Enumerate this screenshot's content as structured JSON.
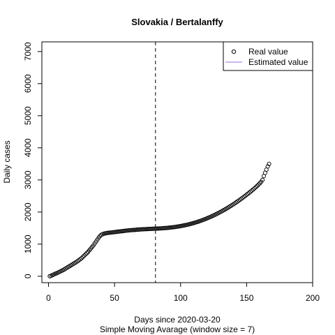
{
  "chart_data": {
    "type": "scatter",
    "title": "Slovakia / Bertalanffy",
    "xlabel": "Days since 2020-03-20",
    "subtitle": "Simple Moving Avarage (window size = 7)",
    "ylabel": "Daily cases",
    "xlim": [
      -5,
      200
    ],
    "ylim": [
      -200,
      7300
    ],
    "x_ticks": [
      0,
      50,
      100,
      150,
      200
    ],
    "y_ticks": [
      0,
      1000,
      2000,
      3000,
      4000,
      5000,
      6000,
      7000
    ],
    "vline_x": 81,
    "grid": false,
    "legend": {
      "position": "top-right",
      "entries": [
        {
          "label": "Real value",
          "marker": "circle"
        },
        {
          "label": "Estimated value",
          "marker": "line",
          "color": "#9370DB"
        }
      ]
    },
    "series": [
      {
        "name": "Real value",
        "points": [
          [
            1,
            0
          ],
          [
            2,
            15
          ],
          [
            3,
            35
          ],
          [
            4,
            55
          ],
          [
            5,
            75
          ],
          [
            6,
            90
          ],
          [
            7,
            110
          ],
          [
            8,
            130
          ],
          [
            9,
            150
          ],
          [
            10,
            170
          ],
          [
            11,
            190
          ],
          [
            12,
            215
          ],
          [
            13,
            240
          ],
          [
            14,
            265
          ],
          [
            15,
            290
          ],
          [
            16,
            315
          ],
          [
            17,
            340
          ],
          [
            18,
            365
          ],
          [
            19,
            390
          ],
          [
            20,
            415
          ],
          [
            21,
            440
          ],
          [
            22,
            470
          ],
          [
            23,
            500
          ],
          [
            24,
            530
          ],
          [
            25,
            560
          ],
          [
            26,
            600
          ],
          [
            27,
            640
          ],
          [
            28,
            680
          ],
          [
            29,
            720
          ],
          [
            30,
            760
          ],
          [
            31,
            810
          ],
          [
            32,
            860
          ],
          [
            33,
            910
          ],
          [
            34,
            960
          ],
          [
            35,
            1020
          ],
          [
            36,
            1080
          ],
          [
            37,
            1140
          ],
          [
            38,
            1200
          ],
          [
            39,
            1250
          ],
          [
            40,
            1290
          ],
          [
            41,
            1310
          ],
          [
            42,
            1325
          ],
          [
            43,
            1335
          ],
          [
            44,
            1345
          ],
          [
            45,
            1350
          ],
          [
            46,
            1355
          ],
          [
            47,
            1360
          ],
          [
            48,
            1365
          ],
          [
            49,
            1370
          ],
          [
            50,
            1375
          ],
          [
            51,
            1380
          ],
          [
            52,
            1385
          ],
          [
            53,
            1390
          ],
          [
            54,
            1395
          ],
          [
            55,
            1400
          ],
          [
            56,
            1405
          ],
          [
            57,
            1410
          ],
          [
            58,
            1415
          ],
          [
            59,
            1420
          ],
          [
            60,
            1425
          ],
          [
            61,
            1430
          ],
          [
            62,
            1433
          ],
          [
            63,
            1436
          ],
          [
            64,
            1440
          ],
          [
            65,
            1443
          ],
          [
            66,
            1446
          ],
          [
            67,
            1450
          ],
          [
            68,
            1453
          ],
          [
            69,
            1456
          ],
          [
            70,
            1460
          ],
          [
            71,
            1462
          ],
          [
            72,
            1464
          ],
          [
            73,
            1466
          ],
          [
            74,
            1468
          ],
          [
            75,
            1470
          ],
          [
            76,
            1472
          ],
          [
            77,
            1474
          ],
          [
            78,
            1476
          ],
          [
            79,
            1478
          ],
          [
            80,
            1480
          ],
          [
            81,
            1482
          ],
          [
            82,
            1484
          ],
          [
            83,
            1486
          ],
          [
            84,
            1488
          ],
          [
            85,
            1490
          ],
          [
            86,
            1493
          ],
          [
            87,
            1496
          ],
          [
            88,
            1500
          ],
          [
            89,
            1503
          ],
          [
            90,
            1506
          ],
          [
            91,
            1510
          ],
          [
            92,
            1515
          ],
          [
            93,
            1520
          ],
          [
            94,
            1525
          ],
          [
            95,
            1530
          ],
          [
            96,
            1536
          ],
          [
            97,
            1542
          ],
          [
            98,
            1548
          ],
          [
            99,
            1555
          ],
          [
            100,
            1562
          ],
          [
            101,
            1570
          ],
          [
            102,
            1578
          ],
          [
            103,
            1586
          ],
          [
            104,
            1595
          ],
          [
            105,
            1604
          ],
          [
            106,
            1614
          ],
          [
            107,
            1624
          ],
          [
            108,
            1635
          ],
          [
            109,
            1646
          ],
          [
            110,
            1658
          ],
          [
            111,
            1670
          ],
          [
            112,
            1683
          ],
          [
            113,
            1696
          ],
          [
            114,
            1710
          ],
          [
            115,
            1724
          ],
          [
            116,
            1739
          ],
          [
            117,
            1754
          ],
          [
            118,
            1770
          ],
          [
            119,
            1786
          ],
          [
            120,
            1803
          ],
          [
            121,
            1820
          ],
          [
            122,
            1838
          ],
          [
            123,
            1856
          ],
          [
            124,
            1875
          ],
          [
            125,
            1894
          ],
          [
            126,
            1914
          ],
          [
            127,
            1934
          ],
          [
            128,
            1955
          ],
          [
            129,
            1976
          ],
          [
            130,
            1998
          ],
          [
            131,
            2020
          ],
          [
            132,
            2043
          ],
          [
            133,
            2066
          ],
          [
            134,
            2090
          ],
          [
            135,
            2114
          ],
          [
            136,
            2139
          ],
          [
            137,
            2164
          ],
          [
            138,
            2190
          ],
          [
            139,
            2216
          ],
          [
            140,
            2243
          ],
          [
            141,
            2270
          ],
          [
            142,
            2298
          ],
          [
            143,
            2326
          ],
          [
            144,
            2355
          ],
          [
            145,
            2384
          ],
          [
            146,
            2414
          ],
          [
            147,
            2444
          ],
          [
            148,
            2475
          ],
          [
            149,
            2506
          ],
          [
            150,
            2538
          ],
          [
            151,
            2570
          ],
          [
            152,
            2603
          ],
          [
            153,
            2636
          ],
          [
            154,
            2670
          ],
          [
            155,
            2704
          ],
          [
            156,
            2740
          ],
          [
            157,
            2776
          ],
          [
            158,
            2814
          ],
          [
            159,
            2854
          ],
          [
            160,
            2896
          ],
          [
            161,
            2940
          ],
          [
            162,
            3000
          ],
          [
            163,
            3120
          ],
          [
            164,
            3220
          ],
          [
            165,
            3320
          ],
          [
            166,
            3420
          ],
          [
            167,
            3500
          ]
        ]
      }
    ]
  }
}
